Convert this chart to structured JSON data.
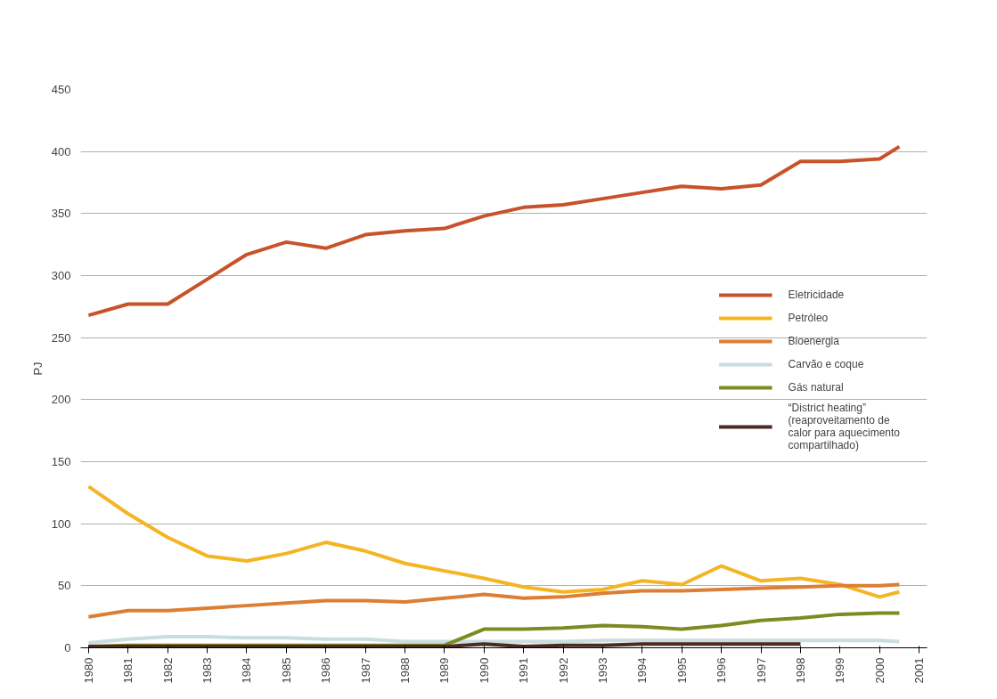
{
  "chart_data": {
    "type": "line",
    "ylabel": "PJ",
    "x": [
      1980,
      1981,
      1982,
      1983,
      1984,
      1985,
      1986,
      1987,
      1988,
      1989,
      1990,
      1991,
      1992,
      1993,
      1994,
      1995,
      1996,
      1997,
      1998,
      1999,
      2000,
      2000.5
    ],
    "xlim": [
      1979.8,
      2001.2
    ],
    "xticks": [
      1980,
      1981,
      1982,
      1983,
      1984,
      1985,
      1986,
      1987,
      1988,
      1989,
      1990,
      1991,
      1992,
      1993,
      1994,
      1995,
      1996,
      1997,
      1998,
      1999,
      2000,
      2001
    ],
    "ylim": [
      0,
      450
    ],
    "yticks": [
      0,
      50,
      100,
      150,
      200,
      250,
      300,
      350,
      400,
      450
    ],
    "grid": "y",
    "legend": "right",
    "line_style": "solid",
    "marker": "none",
    "series": [
      {
        "name": "Eletricidade",
        "color": "#c8522a",
        "values": [
          268,
          277,
          277,
          297,
          317,
          327,
          322,
          333,
          336,
          338,
          348,
          355,
          357,
          362,
          367,
          372,
          370,
          373,
          392,
          392,
          394,
          404
        ]
      },
      {
        "name": "Petróleo",
        "color": "#f5b523",
        "values": [
          130,
          108,
          89,
          74,
          70,
          76,
          85,
          78,
          68,
          62,
          56,
          49,
          45,
          47,
          54,
          51,
          66,
          54,
          56,
          51,
          41,
          45
        ]
      },
      {
        "name": "Bioenergia",
        "color": "#dc7f34",
        "values": [
          25,
          30,
          30,
          32,
          34,
          36,
          38,
          38,
          37,
          40,
          43,
          40,
          41,
          44,
          46,
          46,
          47,
          48,
          49,
          50,
          50,
          51
        ]
      },
      {
        "name": "Carvão e coque",
        "color": "#c9dde0",
        "values": [
          4,
          7,
          9,
          9,
          8,
          8,
          7,
          7,
          5,
          5,
          5,
          5,
          5,
          6,
          6,
          6,
          6,
          6,
          6,
          6,
          6,
          5
        ]
      },
      {
        "name": "Gás natural",
        "color": "#7a8c22",
        "values": [
          1,
          2,
          2,
          2,
          2,
          2,
          2,
          2,
          2,
          2,
          15,
          15,
          16,
          18,
          17,
          15,
          18,
          22,
          24,
          27,
          28,
          28
        ]
      },
      {
        "name": "“District heating”\n(reaproveitamento de\ncalor para aquecimento\ncompartilhado)",
        "color": "#4a2a22",
        "values": [
          1,
          1,
          1,
          1,
          1,
          1,
          1,
          1,
          1,
          1,
          3,
          1,
          2,
          2,
          3,
          3,
          3,
          3,
          3,
          null,
          null,
          null
        ]
      }
    ]
  }
}
